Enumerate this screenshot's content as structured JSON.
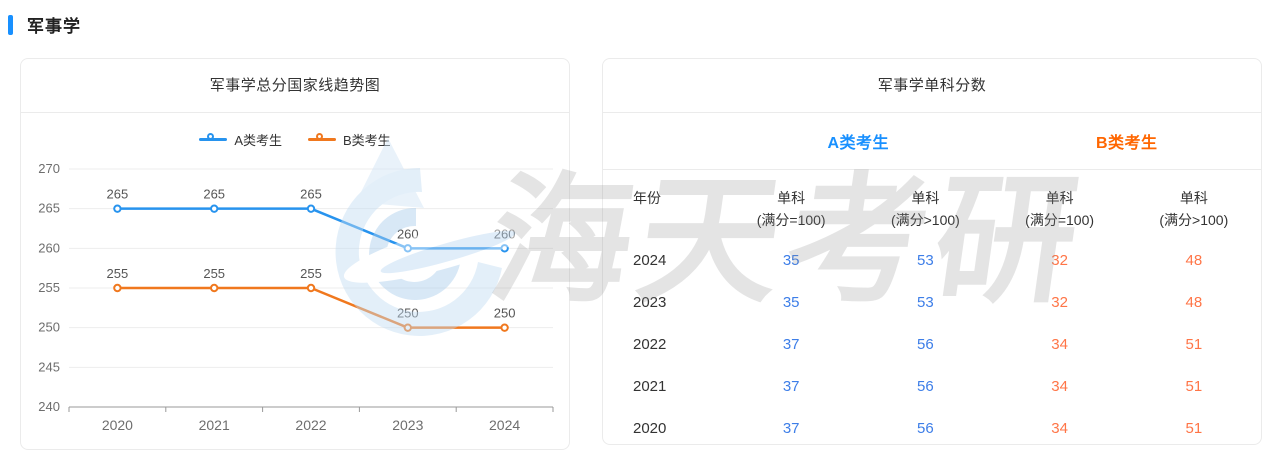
{
  "page": {
    "header": {
      "title": "军事学",
      "accent_color": "#1890ff"
    }
  },
  "trend_card": {
    "title": "军事学总分国家线趋势图"
  },
  "chart_data": {
    "type": "line",
    "title": "军事学总分国家线趋势图",
    "categories": [
      "2020",
      "2021",
      "2022",
      "2023",
      "2024"
    ],
    "series": [
      {
        "name": "A类考生",
        "color": "#2793ee",
        "values": [
          265,
          265,
          265,
          260,
          260
        ]
      },
      {
        "name": "B类考生",
        "color": "#f0781e",
        "values": [
          255,
          255,
          255,
          250,
          250
        ]
      }
    ],
    "xlabel": "",
    "ylabel": "",
    "ylim": [
      240,
      270
    ],
    "y_ticks": [
      240,
      245,
      250,
      255,
      260,
      265,
      270
    ],
    "grid": true,
    "legend_position": "top",
    "data_labels": true
  },
  "score_card": {
    "title": "军事学单科分数",
    "group_headers": [
      {
        "label": "A类考生",
        "color": "#1890ff"
      },
      {
        "label": "B类考生",
        "color": "#ff6600"
      }
    ],
    "columns": [
      "年份",
      "单科\n(满分=100)",
      "单科\n(满分>100)",
      "单科\n(满分=100)",
      "单科\n(满分>100)"
    ],
    "value_colors": {
      "a": "#3d7ee8",
      "b": "#ff7547"
    },
    "rows": [
      {
        "year": "2024",
        "a1": "35",
        "a2": "53",
        "b1": "32",
        "b2": "48"
      },
      {
        "year": "2023",
        "a1": "35",
        "a2": "53",
        "b1": "32",
        "b2": "48"
      },
      {
        "year": "2022",
        "a1": "37",
        "a2": "56",
        "b1": "34",
        "b2": "51"
      },
      {
        "year": "2021",
        "a1": "37",
        "a2": "56",
        "b1": "34",
        "b2": "51"
      },
      {
        "year": "2020",
        "a1": "37",
        "a2": "56",
        "b1": "34",
        "b2": "51"
      }
    ]
  },
  "watermark": {
    "text": "海天考研"
  }
}
